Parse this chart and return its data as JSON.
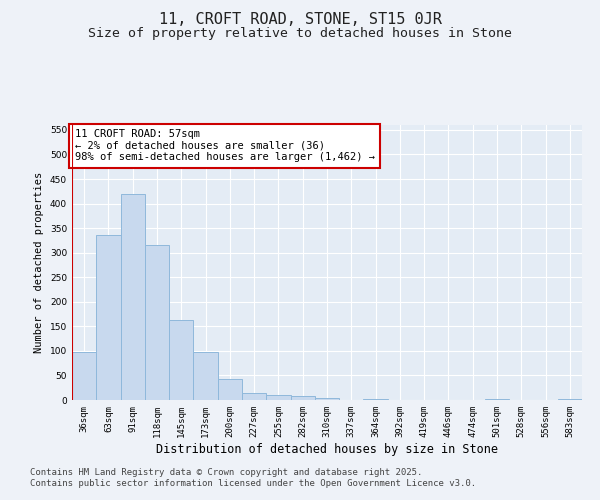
{
  "title": "11, CROFT ROAD, STONE, ST15 0JR",
  "subtitle": "Size of property relative to detached houses in Stone",
  "xlabel": "Distribution of detached houses by size in Stone",
  "ylabel": "Number of detached properties",
  "categories": [
    "36sqm",
    "63sqm",
    "91sqm",
    "118sqm",
    "145sqm",
    "173sqm",
    "200sqm",
    "227sqm",
    "255sqm",
    "282sqm",
    "310sqm",
    "337sqm",
    "364sqm",
    "392sqm",
    "419sqm",
    "446sqm",
    "474sqm",
    "501sqm",
    "528sqm",
    "556sqm",
    "583sqm"
  ],
  "values": [
    97,
    335,
    420,
    315,
    163,
    98,
    42,
    14,
    10,
    8,
    5,
    0,
    2,
    1,
    0,
    0,
    0,
    2,
    0,
    0,
    3
  ],
  "bar_color": "#c8d9ee",
  "bar_edge_color": "#8fb8db",
  "annotation_line_color": "#cc0000",
  "annotation_box_text": "11 CROFT ROAD: 57sqm\n← 2% of detached houses are smaller (36)\n98% of semi-detached houses are larger (1,462) →",
  "ylim": [
    0,
    560
  ],
  "yticks": [
    0,
    50,
    100,
    150,
    200,
    250,
    300,
    350,
    400,
    450,
    500,
    550
  ],
  "footer_text": "Contains HM Land Registry data © Crown copyright and database right 2025.\nContains public sector information licensed under the Open Government Licence v3.0.",
  "background_color": "#eef2f8",
  "plot_background_color": "#e4ecf5",
  "grid_color": "#ffffff",
  "title_fontsize": 11,
  "subtitle_fontsize": 9.5,
  "xlabel_fontsize": 8.5,
  "ylabel_fontsize": 7.5,
  "tick_fontsize": 6.5,
  "annotation_fontsize": 7.5,
  "footer_fontsize": 6.5
}
